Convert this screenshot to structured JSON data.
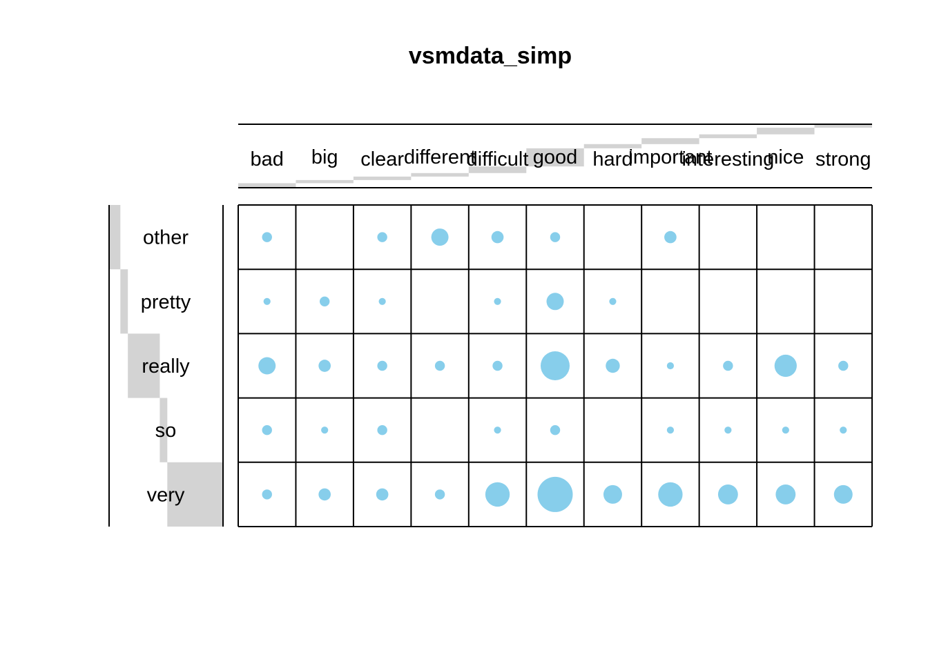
{
  "chart_data": {
    "type": "heatmap",
    "title": "vsmdata_simp",
    "rows": [
      "other",
      "pretty",
      "really",
      "so",
      "very"
    ],
    "columns": [
      "bad",
      "big",
      "clear",
      "different",
      "difficult",
      "good",
      "hard",
      "important",
      "interesting",
      "nice",
      "strong"
    ],
    "values": [
      [
        2,
        0,
        2,
        6,
        3,
        2,
        0,
        3,
        0,
        0,
        0
      ],
      [
        1,
        2,
        1,
        0,
        1,
        6,
        1,
        0,
        0,
        0,
        0
      ],
      [
        6,
        3,
        2,
        2,
        2,
        17,
        4,
        1,
        2,
        10,
        2
      ],
      [
        2,
        1,
        2,
        0,
        1,
        2,
        0,
        1,
        1,
        1,
        1
      ],
      [
        2,
        3,
        3,
        2,
        12,
        25,
        7,
        12,
        8,
        8,
        7
      ]
    ],
    "row_totals": [
      18,
      12,
      51,
      12,
      89
    ],
    "column_totals": [
      13,
      9,
      10,
      10,
      19,
      52,
      12,
      17,
      11,
      19,
      10
    ],
    "marker_color": "#87CEEB",
    "bar_color": "#D3D3D3",
    "grid": true,
    "legend": "none"
  }
}
